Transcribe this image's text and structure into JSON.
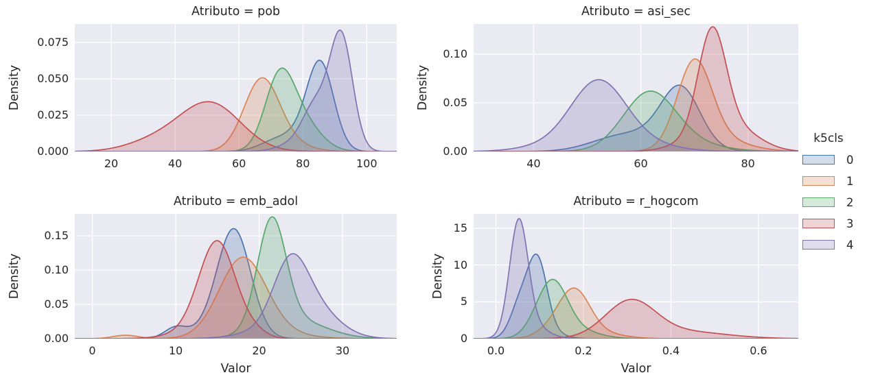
{
  "figure": {
    "background": "#ffffff",
    "axes_background": "#eaeaf2",
    "grid_color": "#ffffff",
    "text_color": "#262626",
    "curve_fill_opacity": 0.25
  },
  "legend": {
    "title": "k5cls",
    "entries": [
      {
        "label": "0",
        "color": "#4C72B0"
      },
      {
        "label": "1",
        "color": "#DD8452"
      },
      {
        "label": "2",
        "color": "#55A868"
      },
      {
        "label": "3",
        "color": "#C44E52"
      },
      {
        "label": "4",
        "color": "#8172B3"
      }
    ]
  },
  "chart_data": [
    {
      "type": "area",
      "subtype": "kde-density",
      "title": "Atributo = pob",
      "xlabel": "",
      "ylabel": "Density",
      "xlim": [
        8.6,
        109.4
      ],
      "ylim": [
        0,
        0.0877
      ],
      "xticks": [
        20,
        40,
        60,
        80,
        100
      ],
      "xtick_labels": [
        "20",
        "40",
        "60",
        "80",
        "100"
      ],
      "yticks": [
        0.0,
        0.025,
        0.05,
        0.075
      ],
      "ytick_labels": [
        "0.000",
        "0.025",
        "0.050",
        "0.075"
      ],
      "grid": true,
      "series": [
        {
          "name": "0",
          "color": "#4C72B0",
          "peak": {
            "x": 85.5,
            "y": 0.064
          },
          "components": [
            [
              85.5,
              4.2,
              0.058
            ],
            [
              78,
              6,
              0.01
            ],
            [
              70,
              5,
              0.004
            ]
          ]
        },
        {
          "name": "1",
          "color": "#DD8452",
          "peak": {
            "x": 67,
            "y": 0.05
          },
          "components": [
            [
              67,
              5.5,
              0.047
            ],
            [
              74,
              7,
              0.006
            ]
          ]
        },
        {
          "name": "2",
          "color": "#55A868",
          "peak": {
            "x": 73,
            "y": 0.054
          },
          "components": [
            [
              72.5,
              4.5,
              0.044
            ],
            [
              79,
              6,
              0.022
            ]
          ]
        },
        {
          "name": "3",
          "color": "#C44E52",
          "peak": {
            "x": 51,
            "y": 0.036
          },
          "components": [
            [
              51,
              9.5,
              0.033
            ],
            [
              34,
              9,
              0.007
            ]
          ]
        },
        {
          "name": "4",
          "color": "#8172B3",
          "peak": {
            "x": 92,
            "y": 0.084
          },
          "components": [
            [
              92,
              3.6,
              0.079
            ],
            [
              84,
              4,
              0.03
            ],
            [
              77,
              5,
              0.005
            ]
          ]
        }
      ]
    },
    {
      "type": "area",
      "subtype": "kde-density",
      "title": "Atributo = asi_sec",
      "xlabel": "",
      "ylabel": "Density",
      "xlim": [
        28.8,
        89.4
      ],
      "ylim": [
        0,
        0.131
      ],
      "xticks": [
        40,
        60,
        80
      ],
      "xtick_labels": [
        "40",
        "60",
        "80"
      ],
      "yticks": [
        0.0,
        0.05,
        0.1
      ],
      "ytick_labels": [
        "0.00",
        "0.05",
        "0.10"
      ],
      "grid": true,
      "series": [
        {
          "name": "0",
          "color": "#4C72B0",
          "peak": {
            "x": 67,
            "y": 0.071
          },
          "components": [
            [
              67.5,
              3.6,
              0.058
            ],
            [
              61,
              6.5,
              0.016
            ],
            [
              54,
              5,
              0.006
            ]
          ]
        },
        {
          "name": "1",
          "color": "#DD8452",
          "peak": {
            "x": 70,
            "y": 0.095
          },
          "components": [
            [
              70,
              3.2,
              0.085
            ],
            [
              74,
              5.5,
              0.013
            ]
          ]
        },
        {
          "name": "2",
          "color": "#55A868",
          "peak": {
            "x": 62,
            "y": 0.064
          },
          "components": [
            [
              61.5,
              4.8,
              0.053
            ],
            [
              66,
              7,
              0.011
            ]
          ]
        },
        {
          "name": "3",
          "color": "#C44E52",
          "peak": {
            "x": 73,
            "y": 0.122
          },
          "components": [
            [
              73.3,
              2.6,
              0.108
            ],
            [
              77.5,
              4.5,
              0.024
            ],
            [
              69,
              4,
              0.008
            ]
          ]
        },
        {
          "name": "4",
          "color": "#8172B3",
          "peak": {
            "x": 52,
            "y": 0.072
          },
          "components": [
            [
              52,
              5,
              0.062
            ],
            [
              57,
              7,
              0.012
            ],
            [
              44,
              6,
              0.006
            ]
          ]
        }
      ]
    },
    {
      "type": "area",
      "subtype": "kde-density",
      "title": "Atributo = emb_adol",
      "xlabel": "Valor",
      "ylabel": "Density",
      "xlim": [
        -2.1,
        36.5
      ],
      "ylim": [
        0,
        0.182
      ],
      "xticks": [
        0,
        10,
        20,
        30
      ],
      "xtick_labels": [
        "0",
        "10",
        "20",
        "30"
      ],
      "yticks": [
        0.0,
        0.05,
        0.1,
        0.15
      ],
      "ytick_labels": [
        "0.00",
        "0.05",
        "0.10",
        "0.15"
      ],
      "grid": true,
      "series": [
        {
          "name": "0",
          "color": "#4C72B0",
          "peak": {
            "x": 17,
            "y": 0.162
          },
          "components": [
            [
              17,
              2.0,
              0.152
            ],
            [
              14.5,
              3,
              0.012
            ],
            [
              10,
              1.3,
              0.014
            ]
          ]
        },
        {
          "name": "1",
          "color": "#DD8452",
          "peak": {
            "x": 18,
            "y": 0.12
          },
          "components": [
            [
              18,
              2.8,
              0.112
            ],
            [
              21,
              4,
              0.009
            ],
            [
              4,
              1.5,
              0.005
            ]
          ]
        },
        {
          "name": "2",
          "color": "#55A868",
          "peak": {
            "x": 21.5,
            "y": 0.178
          },
          "components": [
            [
              21.5,
              1.7,
              0.155
            ],
            [
              24,
              3.8,
              0.028
            ]
          ]
        },
        {
          "name": "3",
          "color": "#C44E52",
          "peak": {
            "x": 15,
            "y": 0.145
          },
          "components": [
            [
              15,
              2.2,
              0.138
            ],
            [
              12,
              3,
              0.008
            ],
            [
              19.5,
              1.5,
              0.008
            ]
          ]
        },
        {
          "name": "4",
          "color": "#8172B3",
          "peak": {
            "x": 24,
            "y": 0.123
          },
          "components": [
            [
              23.7,
              2.0,
              0.075
            ],
            [
              25.7,
              3.2,
              0.055
            ],
            [
              19.5,
              3,
              0.006
            ]
          ]
        }
      ]
    },
    {
      "type": "area",
      "subtype": "kde-density",
      "title": "Atributo = r_hogcom",
      "xlabel": "Valor",
      "ylabel": "Density",
      "xlim": [
        -0.051,
        0.691
      ],
      "ylim": [
        0,
        16.95
      ],
      "xticks": [
        0.0,
        0.2,
        0.4,
        0.6
      ],
      "xtick_labels": [
        "0.0",
        "0.2",
        "0.4",
        "0.6"
      ],
      "yticks": [
        0,
        5,
        10,
        15
      ],
      "ytick_labels": [
        "0",
        "5",
        "10",
        "15"
      ],
      "grid": true,
      "series": [
        {
          "name": "0",
          "color": "#4C72B0",
          "peak": {
            "x": 0.095,
            "y": 11.2
          },
          "components": [
            [
              0.095,
              0.022,
              10.2
            ],
            [
              0.055,
              0.022,
              4.6
            ],
            [
              0.13,
              0.03,
              0.6
            ]
          ]
        },
        {
          "name": "1",
          "color": "#DD8452",
          "peak": {
            "x": 0.18,
            "y": 7.0
          },
          "components": [
            [
              0.18,
              0.035,
              6.1
            ],
            [
              0.13,
              0.035,
              1.2
            ],
            [
              0.24,
              0.05,
              0.7
            ]
          ]
        },
        {
          "name": "2",
          "color": "#55A868",
          "peak": {
            "x": 0.13,
            "y": 8.0
          },
          "components": [
            [
              0.13,
              0.033,
              7.0
            ],
            [
              0.18,
              0.05,
              1.2
            ],
            [
              0.09,
              0.028,
              0.9
            ]
          ]
        },
        {
          "name": "3",
          "color": "#C44E52",
          "peak": {
            "x": 0.31,
            "y": 5.3
          },
          "components": [
            [
              0.31,
              0.055,
              4.6
            ],
            [
              0.42,
              0.1,
              1.0
            ],
            [
              0.25,
              0.05,
              0.4
            ]
          ]
        },
        {
          "name": "4",
          "color": "#8172B3",
          "peak": {
            "x": 0.05,
            "y": 16.4
          },
          "components": [
            [
              0.052,
              0.021,
              15.0
            ],
            [
              0.08,
              0.035,
              1.8
            ]
          ]
        }
      ]
    }
  ]
}
